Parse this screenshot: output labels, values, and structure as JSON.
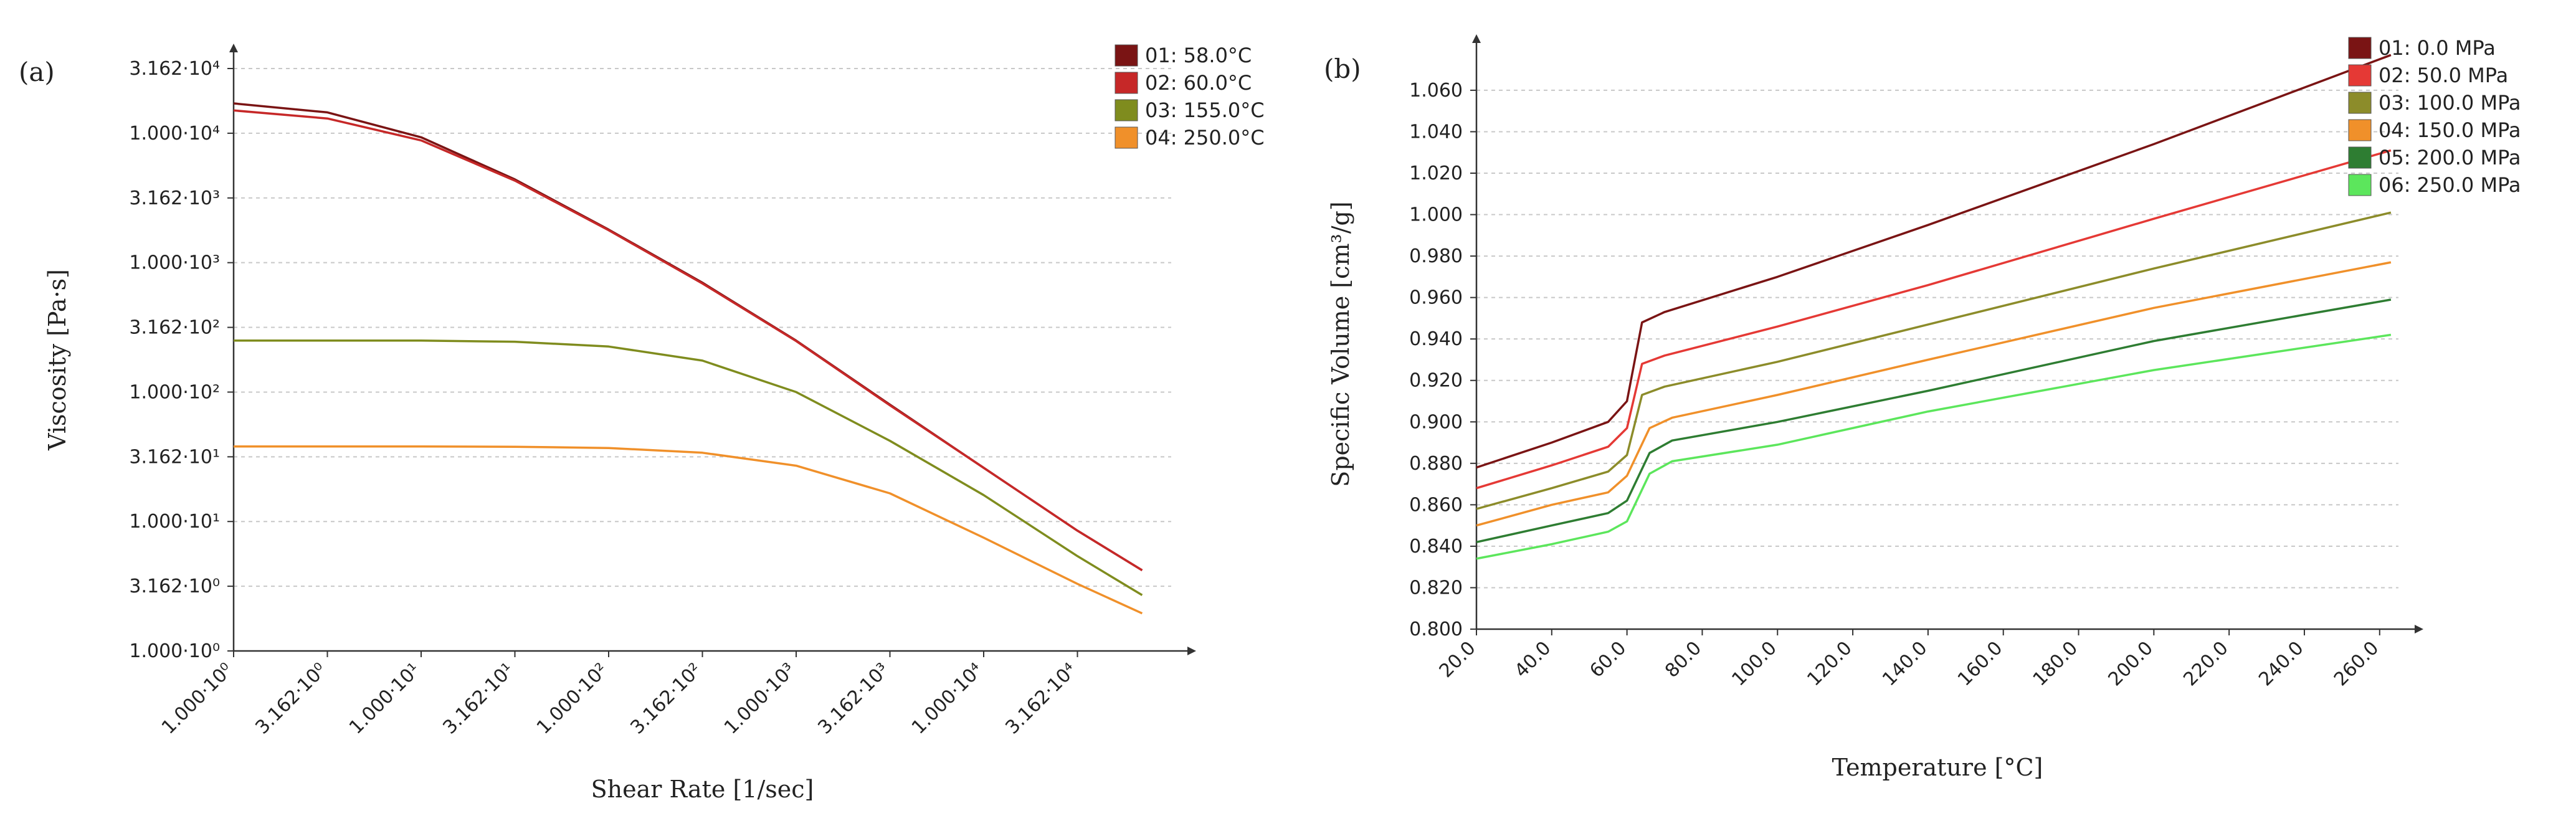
{
  "chart_data": [
    {
      "type": "line",
      "panel": "(a)",
      "xlabel": "Shear Rate [1/sec]",
      "ylabel": "Viscosity [Pa·s]",
      "xscale": "log",
      "yscale": "log",
      "xlim": [
        1,
        100000
      ],
      "ylim": [
        1,
        31620
      ],
      "xticks": [
        1,
        3.162,
        10,
        31.62,
        100,
        316.2,
        1000,
        3162,
        10000,
        31620
      ],
      "xtick_labels": [
        "1.000·10⁰",
        "3.162·10⁰",
        "1.000·10¹",
        "3.162·10¹",
        "1.000·10²",
        "3.162·10²",
        "1.000·10³",
        "3.162·10³",
        "1.000·10⁴",
        "3.162·10⁴"
      ],
      "yticks": [
        1,
        3.162,
        10,
        31.62,
        100,
        316.2,
        1000,
        3162,
        10000,
        31620
      ],
      "ytick_labels": [
        "1.000·10⁰",
        "3.162·10⁰",
        "1.000·10¹",
        "3.162·10¹",
        "1.000·10²",
        "3.162·10²",
        "1.000·10³",
        "3.162·10³",
        "1.000·10⁴",
        "3.162·10⁴"
      ],
      "grid": "horizontal-dashed",
      "legend_position": "top-right",
      "x": [
        1,
        3.162,
        10,
        31.62,
        100,
        316.2,
        1000,
        3162,
        10000,
        31620,
        70000
      ],
      "series": [
        {
          "name": "01: 58.0°C",
          "color": "#7a1414",
          "values": [
            17000,
            14500,
            9300,
            4400,
            1800,
            700,
            250,
            80,
            26,
            8.5,
            4.2
          ]
        },
        {
          "name": "02: 60.0°C",
          "color": "#c62828",
          "values": [
            15000,
            13000,
            8800,
            4300,
            1780,
            690,
            248,
            79,
            26,
            8.5,
            4.2
          ]
        },
        {
          "name": "03: 155.0°C",
          "color": "#7f8c1e",
          "values": [
            250,
            250,
            250,
            245,
            225,
            175,
            100,
            42,
            16,
            5.4,
            2.7
          ]
        },
        {
          "name": "04: 250.0°C",
          "color": "#f0902a",
          "values": [
            38,
            38,
            38,
            37.8,
            37,
            34,
            27,
            16.5,
            7.5,
            3.3,
            1.95
          ]
        }
      ]
    },
    {
      "type": "line",
      "panel": "(b)",
      "xlabel": "Temperature [°C]",
      "ylabel": "Specific Volume [cm³/g]",
      "xlim": [
        20,
        265
      ],
      "ylim": [
        0.8,
        1.075
      ],
      "xticks": [
        20,
        40,
        60,
        80,
        100,
        120,
        140,
        160,
        180,
        200,
        220,
        240,
        260
      ],
      "xtick_labels": [
        "20.0",
        "40.0",
        "60.0",
        "80.0",
        "100.0",
        "120.0",
        "140.0",
        "160.0",
        "180.0",
        "200.0",
        "220.0",
        "240.0",
        "260.0"
      ],
      "yticks": [
        0.8,
        0.82,
        0.84,
        0.86,
        0.88,
        0.9,
        0.92,
        0.94,
        0.96,
        0.98,
        1.0,
        1.02,
        1.04,
        1.06
      ],
      "ytick_labels": [
        "0.800",
        "0.820",
        "0.840",
        "0.860",
        "0.880",
        "0.900",
        "0.920",
        "0.940",
        "0.960",
        "0.980",
        "1.000",
        "1.020",
        "1.040",
        "1.060"
      ],
      "grid": "horizontal-dashed",
      "legend_position": "top-right",
      "series": [
        {
          "name": "01: 0.0 MPa",
          "color": "#7a1414",
          "x": [
            20,
            40,
            55,
            60,
            64,
            70,
            100,
            140,
            200,
            263
          ],
          "values": [
            0.878,
            0.89,
            0.9,
            0.91,
            0.948,
            0.953,
            0.97,
            0.995,
            1.034,
            1.077
          ]
        },
        {
          "name": "02: 50.0 MPa",
          "color": "#e53935",
          "x": [
            20,
            40,
            55,
            60,
            64,
            70,
            100,
            140,
            200,
            263
          ],
          "values": [
            0.868,
            0.879,
            0.888,
            0.897,
            0.928,
            0.932,
            0.946,
            0.966,
            0.998,
            1.031
          ]
        },
        {
          "name": "03: 100.0 MPa",
          "color": "#8c8c2a",
          "x": [
            20,
            40,
            55,
            60,
            64,
            70,
            100,
            140,
            200,
            263
          ],
          "values": [
            0.858,
            0.868,
            0.876,
            0.884,
            0.913,
            0.917,
            0.929,
            0.947,
            0.974,
            1.001
          ]
        },
        {
          "name": "04: 150.0 MPa",
          "color": "#f0902a",
          "x": [
            20,
            40,
            55,
            60,
            66,
            72,
            100,
            140,
            200,
            263
          ],
          "values": [
            0.85,
            0.86,
            0.866,
            0.874,
            0.897,
            0.902,
            0.913,
            0.93,
            0.955,
            0.977
          ]
        },
        {
          "name": "05: 200.0 MPa",
          "color": "#2e7d32",
          "x": [
            20,
            40,
            55,
            60,
            66,
            72,
            100,
            140,
            200,
            263
          ],
          "values": [
            0.842,
            0.85,
            0.856,
            0.862,
            0.885,
            0.891,
            0.9,
            0.915,
            0.939,
            0.959
          ]
        },
        {
          "name": "06: 250.0 MPa",
          "color": "#5ce65c",
          "x": [
            20,
            40,
            55,
            60,
            66,
            72,
            100,
            140,
            200,
            263
          ],
          "values": [
            0.834,
            0.841,
            0.847,
            0.852,
            0.875,
            0.881,
            0.889,
            0.905,
            0.925,
            0.942
          ]
        }
      ]
    }
  ]
}
